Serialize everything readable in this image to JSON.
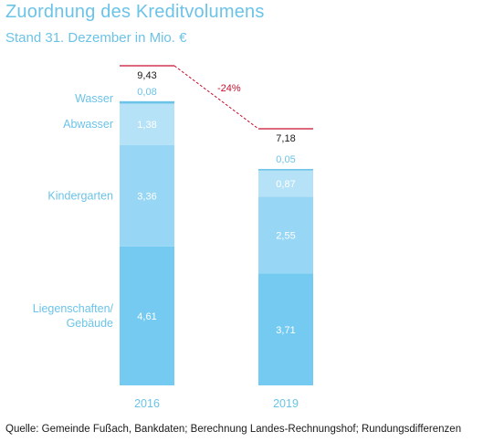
{
  "title": "Zuordnung des Kreditvolumens",
  "subtitle": "Stand 31. Dezember in Mio. €",
  "source": "Quelle: Gemeinde Fußach, Bankdaten; Berechnung Landes-Rechnungshof; Rundungsdifferenzen",
  "colors": {
    "title": "#6cc3e8",
    "segments": [
      "#75caf1",
      "#97d6f4",
      "#b6e2f7",
      "#6cc3e8"
    ],
    "accent": "#c8102e"
  },
  "chart_data": {
    "type": "bar",
    "stacked": true,
    "categories": [
      "2016",
      "2019"
    ],
    "series": [
      {
        "name": "Liegenschaften/ Gebäude",
        "label_lines": [
          "Liegenschaften/",
          "Gebäude"
        ],
        "values": [
          4.61,
          3.71
        ],
        "labels": [
          "4,61",
          "3,71"
        ]
      },
      {
        "name": "Kindergarten",
        "label_lines": [
          "Kindergarten"
        ],
        "values": [
          3.36,
          2.55
        ],
        "labels": [
          "3,36",
          "2,55"
        ]
      },
      {
        "name": "Abwasser",
        "label_lines": [
          "Abwasser"
        ],
        "values": [
          1.38,
          0.87
        ],
        "labels": [
          "1,38",
          "0,87"
        ]
      },
      {
        "name": "Wasser",
        "label_lines": [
          "Wasser"
        ],
        "values": [
          0.08,
          0.05
        ],
        "labels": [
          "0,08",
          "0,05"
        ]
      }
    ],
    "totals": [
      9.43,
      7.18
    ],
    "total_labels": [
      "9,43",
      "7,18"
    ],
    "change_label": "-24%",
    "ylim": [
      0,
      10
    ]
  }
}
